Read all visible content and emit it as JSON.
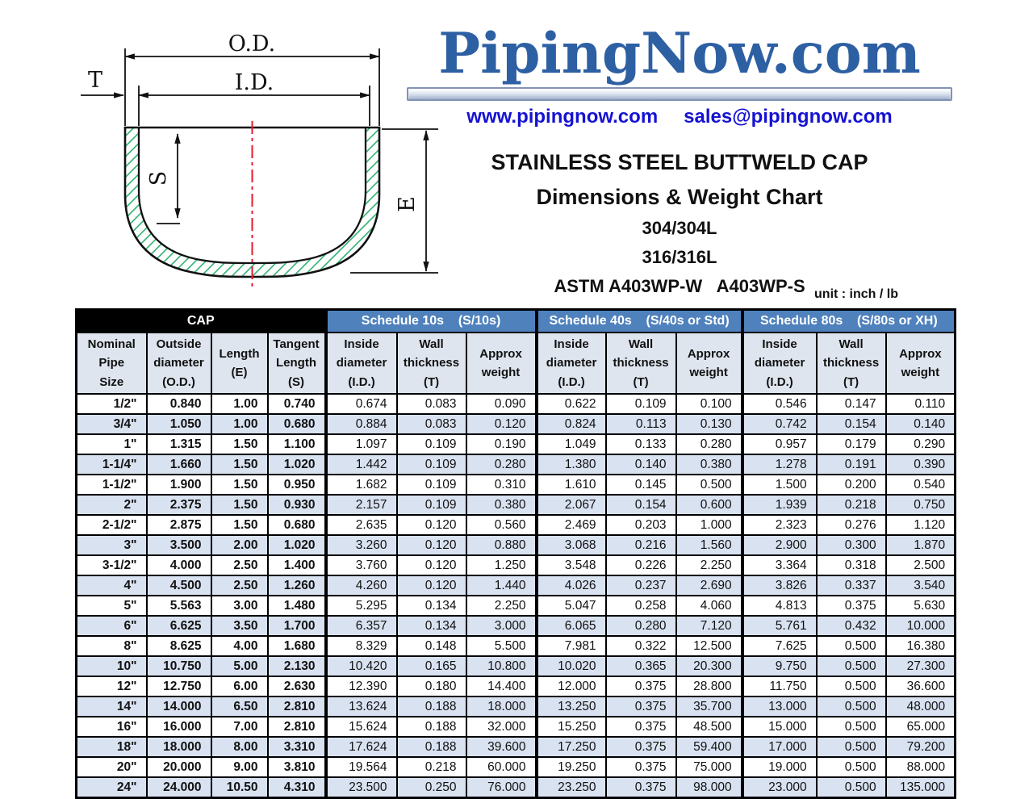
{
  "diagram": {
    "labels": {
      "od": "O.D.",
      "id": "I.D.",
      "t": "T",
      "s": "S",
      "e": "E"
    },
    "hatch_color": "#2db36f",
    "centerline_color": "#e8192c"
  },
  "header": {
    "logo": "PipingNow.com",
    "logo_color": "#2d5fa3",
    "website": "www.pipingnow.com",
    "email": "sales@pipingnow.com",
    "title_line1": "STAINLESS STEEL BUTTWELD CAP",
    "title_line2": "Dimensions & Weight Chart",
    "grade1": "304/304L",
    "grade2": "316/316L",
    "spec": "ASTM A403WP-W   A403WP-S",
    "unit_note": "unit : inch / lb"
  },
  "table": {
    "colors": {
      "group_blue": "#4f81bd",
      "group_black": "#000000",
      "header_bg": "#dee5ef",
      "alt_row": "#d9e2f1"
    },
    "groups": [
      {
        "label": "CAP"
      },
      {
        "label": "Schedule 10s    (S/10s)"
      },
      {
        "label": "Schedule 40s    (S/40s or Std)"
      },
      {
        "label": "Schedule 80s    (S/80s or XH)"
      }
    ],
    "columns": [
      "Nominal\nPipe\nSize",
      "Outside\ndiameter\n(O.D.)",
      "Length\n(E)",
      "Tangent\nLength\n(S)",
      "Inside\ndiameter\n(I.D.)",
      "Wall\nthickness\n(T)",
      "Approx\nweight",
      "Inside\ndiameter\n(I.D.)",
      "Wall\nthickness\n(T)",
      "Approx\nweight",
      "Inside\ndiameter\n(I.D.)",
      "Wall\nthickness\n(T)",
      "Approx\nweight"
    ],
    "rows": [
      [
        "1/2\"",
        "0.840",
        "1.00",
        "0.740",
        "0.674",
        "0.083",
        "0.090",
        "0.622",
        "0.109",
        "0.100",
        "0.546",
        "0.147",
        "0.110"
      ],
      [
        "3/4\"",
        "1.050",
        "1.00",
        "0.680",
        "0.884",
        "0.083",
        "0.120",
        "0.824",
        "0.113",
        "0.130",
        "0.742",
        "0.154",
        "0.140"
      ],
      [
        "1\"",
        "1.315",
        "1.50",
        "1.100",
        "1.097",
        "0.109",
        "0.190",
        "1.049",
        "0.133",
        "0.280",
        "0.957",
        "0.179",
        "0.290"
      ],
      [
        "1-1/4\"",
        "1.660",
        "1.50",
        "1.020",
        "1.442",
        "0.109",
        "0.280",
        "1.380",
        "0.140",
        "0.380",
        "1.278",
        "0.191",
        "0.390"
      ],
      [
        "1-1/2\"",
        "1.900",
        "1.50",
        "0.950",
        "1.682",
        "0.109",
        "0.310",
        "1.610",
        "0.145",
        "0.500",
        "1.500",
        "0.200",
        "0.540"
      ],
      [
        "2\"",
        "2.375",
        "1.50",
        "0.930",
        "2.157",
        "0.109",
        "0.380",
        "2.067",
        "0.154",
        "0.600",
        "1.939",
        "0.218",
        "0.750"
      ],
      [
        "2-1/2\"",
        "2.875",
        "1.50",
        "0.680",
        "2.635",
        "0.120",
        "0.560",
        "2.469",
        "0.203",
        "1.000",
        "2.323",
        "0.276",
        "1.120"
      ],
      [
        "3\"",
        "3.500",
        "2.00",
        "1.020",
        "3.260",
        "0.120",
        "0.880",
        "3.068",
        "0.216",
        "1.560",
        "2.900",
        "0.300",
        "1.870"
      ],
      [
        "3-1/2\"",
        "4.000",
        "2.50",
        "1.400",
        "3.760",
        "0.120",
        "1.250",
        "3.548",
        "0.226",
        "2.250",
        "3.364",
        "0.318",
        "2.500"
      ],
      [
        "4\"",
        "4.500",
        "2.50",
        "1.260",
        "4.260",
        "0.120",
        "1.440",
        "4.026",
        "0.237",
        "2.690",
        "3.826",
        "0.337",
        "3.540"
      ],
      [
        "5\"",
        "5.563",
        "3.00",
        "1.480",
        "5.295",
        "0.134",
        "2.250",
        "5.047",
        "0.258",
        "4.060",
        "4.813",
        "0.375",
        "5.630"
      ],
      [
        "6\"",
        "6.625",
        "3.50",
        "1.700",
        "6.357",
        "0.134",
        "3.000",
        "6.065",
        "0.280",
        "7.120",
        "5.761",
        "0.432",
        "10.000"
      ],
      [
        "8\"",
        "8.625",
        "4.00",
        "1.680",
        "8.329",
        "0.148",
        "5.500",
        "7.981",
        "0.322",
        "12.500",
        "7.625",
        "0.500",
        "16.380"
      ],
      [
        "10\"",
        "10.750",
        "5.00",
        "2.130",
        "10.420",
        "0.165",
        "10.800",
        "10.020",
        "0.365",
        "20.300",
        "9.750",
        "0.500",
        "27.300"
      ],
      [
        "12\"",
        "12.750",
        "6.00",
        "2.630",
        "12.390",
        "0.180",
        "14.400",
        "12.000",
        "0.375",
        "28.800",
        "11.750",
        "0.500",
        "36.600"
      ],
      [
        "14\"",
        "14.000",
        "6.50",
        "2.810",
        "13.624",
        "0.188",
        "18.000",
        "13.250",
        "0.375",
        "35.700",
        "13.000",
        "0.500",
        "48.000"
      ],
      [
        "16\"",
        "16.000",
        "7.00",
        "2.810",
        "15.624",
        "0.188",
        "32.000",
        "15.250",
        "0.375",
        "48.500",
        "15.000",
        "0.500",
        "65.000"
      ],
      [
        "18\"",
        "18.000",
        "8.00",
        "3.310",
        "17.624",
        "0.188",
        "39.600",
        "17.250",
        "0.375",
        "59.400",
        "17.000",
        "0.500",
        "79.200"
      ],
      [
        "20\"",
        "20.000",
        "9.00",
        "3.810",
        "19.564",
        "0.218",
        "60.000",
        "19.250",
        "0.375",
        "75.000",
        "19.000",
        "0.500",
        "88.000"
      ],
      [
        "24\"",
        "24.000",
        "10.50",
        "4.310",
        "23.500",
        "0.250",
        "76.000",
        "23.250",
        "0.375",
        "98.000",
        "23.000",
        "0.500",
        "135.000"
      ]
    ]
  }
}
